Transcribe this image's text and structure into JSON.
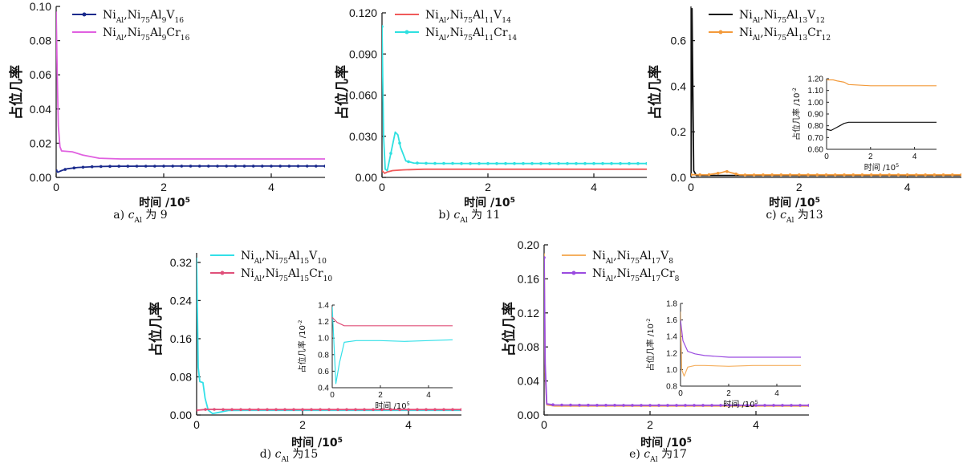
{
  "chart_data": [
    {
      "type": "line",
      "caption": "a) c_Al 为 9",
      "ylabel": "占位几率",
      "xlabel": "时间 /10^5",
      "xlim": [
        0,
        5
      ],
      "ylim": [
        0,
        0.1
      ],
      "xticks": [
        "0",
        "2",
        "4"
      ],
      "yticks": [
        "0.00",
        "0.02",
        "0.04",
        "0.06",
        "0.08",
        "0.10"
      ],
      "series": [
        {
          "name": "Ni_Al,Ni75Al9V16",
          "color": "#1a2a8c",
          "marker": true,
          "points": [
            [
              0,
              0.004
            ],
            [
              0.03,
              0.003
            ],
            [
              0.1,
              0.004
            ],
            [
              0.2,
              0.005
            ],
            [
              0.4,
              0.0058
            ],
            [
              0.7,
              0.0063
            ],
            [
              1,
              0.0065
            ],
            [
              2,
              0.0066
            ],
            [
              3,
              0.0066
            ],
            [
              4,
              0.0066
            ],
            [
              5,
              0.0066
            ]
          ]
        },
        {
          "name": "Ni_Al,Ni75Al9Cr16",
          "color": "#e060e0",
          "marker": false,
          "points": [
            [
              0,
              0.097
            ],
            [
              0.02,
              0.06
            ],
            [
              0.04,
              0.03
            ],
            [
              0.07,
              0.018
            ],
            [
              0.1,
              0.0155
            ],
            [
              0.3,
              0.015
            ],
            [
              0.5,
              0.013
            ],
            [
              0.8,
              0.0112
            ],
            [
              1.2,
              0.0108
            ],
            [
              2,
              0.0108
            ],
            [
              3,
              0.0108
            ],
            [
              4,
              0.0108
            ],
            [
              5,
              0.0108
            ]
          ]
        }
      ]
    },
    {
      "type": "line",
      "caption": "b) c_Al 为 11",
      "ylabel": "占位几率",
      "xlabel": "时间 /10^5",
      "xlim": [
        0,
        5
      ],
      "ylim": [
        0,
        0.12
      ],
      "xticks": [
        "0",
        "2",
        "4"
      ],
      "yticks": [
        "0.00",
        "0.030",
        "0.060",
        "0.090",
        "0.120"
      ],
      "series": [
        {
          "name": "Ni_Al,Ni75Al11V14",
          "color": "#f05a5a",
          "marker": false,
          "points": [
            [
              0,
              0.005
            ],
            [
              0.05,
              0.003
            ],
            [
              0.1,
              0.004
            ],
            [
              0.2,
              0.005
            ],
            [
              0.4,
              0.0055
            ],
            [
              0.8,
              0.006
            ],
            [
              1.5,
              0.006
            ],
            [
              3,
              0.006
            ],
            [
              5,
              0.006
            ]
          ]
        },
        {
          "name": "Ni_Al,Ni75Al11Cr14",
          "color": "#2ee0e0",
          "marker": true,
          "points": [
            [
              0,
              0.11
            ],
            [
              0.03,
              0.03
            ],
            [
              0.06,
              0.006
            ],
            [
              0.1,
              0.005
            ],
            [
              0.18,
              0.02
            ],
            [
              0.25,
              0.033
            ],
            [
              0.3,
              0.031
            ],
            [
              0.35,
              0.022
            ],
            [
              0.45,
              0.012
            ],
            [
              0.6,
              0.0105
            ],
            [
              1,
              0.0102
            ],
            [
              2,
              0.0101
            ],
            [
              3,
              0.0101
            ],
            [
              4,
              0.0101
            ],
            [
              5,
              0.0101
            ]
          ]
        }
      ]
    },
    {
      "type": "line",
      "caption": "c) c_Al 为13",
      "ylabel": "占位几率",
      "xlabel": "时间 /10^5",
      "xlim": [
        0,
        5
      ],
      "ylim": [
        0,
        0.75
      ],
      "xticks": [
        "0",
        "2",
        "4"
      ],
      "yticks": [
        "0.0",
        "0.2",
        "0.4",
        "0.6"
      ],
      "series": [
        {
          "name": "Ni_Al,Ni75Al13V12",
          "color": "#111111",
          "marker": false,
          "points": [
            [
              0,
              0.01
            ],
            [
              0.02,
              0.74
            ],
            [
              0.05,
              0.03
            ],
            [
              0.1,
              0.008
            ],
            [
              0.5,
              0.008
            ],
            [
              1,
              0.008
            ],
            [
              3,
              0.008
            ],
            [
              5,
              0.008
            ]
          ]
        },
        {
          "name": "Ni_Al,Ni75Al13Cr12",
          "color": "#f39a3a",
          "marker": true,
          "points": [
            [
              0,
              0.012
            ],
            [
              0.05,
              0.012
            ],
            [
              0.3,
              0.011
            ],
            [
              0.55,
              0.02
            ],
            [
              0.65,
              0.027
            ],
            [
              0.75,
              0.02
            ],
            [
              0.9,
              0.011
            ],
            [
              2,
              0.0113
            ],
            [
              3,
              0.0113
            ],
            [
              4,
              0.0113
            ],
            [
              5,
              0.0113
            ]
          ]
        }
      ],
      "inset": {
        "ylabel": "占位几率 /10^-2",
        "xlabel": "时间 /10^5",
        "xlim": [
          0,
          5
        ],
        "ylim": [
          0.6,
          1.2
        ],
        "xticks": [
          "0",
          "2",
          "4"
        ],
        "yticks": [
          "0.60",
          "0.70",
          "0.80",
          "0.90",
          "1.00",
          "1.10",
          "1.20"
        ],
        "series": [
          {
            "color": "#111111",
            "points": [
              [
                0,
                0.77
              ],
              [
                0.2,
                0.76
              ],
              [
                0.4,
                0.78
              ],
              [
                0.6,
                0.8
              ],
              [
                0.8,
                0.82
              ],
              [
                1,
                0.83
              ],
              [
                2,
                0.83
              ],
              [
                3,
                0.83
              ],
              [
                4,
                0.83
              ],
              [
                5,
                0.83
              ]
            ]
          },
          {
            "color": "#f39a3a",
            "points": [
              [
                0,
                1.19
              ],
              [
                0.3,
                1.19
              ],
              [
                0.5,
                1.18
              ],
              [
                0.8,
                1.17
              ],
              [
                1,
                1.15
              ],
              [
                2,
                1.14
              ],
              [
                3,
                1.14
              ],
              [
                4,
                1.14
              ],
              [
                5,
                1.14
              ]
            ]
          }
        ]
      }
    },
    {
      "type": "line",
      "caption": "d) c_Al 为15",
      "ylabel": "占位几率",
      "xlabel": "时间 /10^5",
      "xlim": [
        0,
        5
      ],
      "ylim": [
        0,
        0.34
      ],
      "xticks": [
        "0",
        "2",
        "4"
      ],
      "yticks": [
        "0.00",
        "0.08",
        "0.16",
        "0.24",
        "0.32"
      ],
      "series": [
        {
          "name": "Ni_Al,Ni75Al15V10",
          "color": "#33e0e8",
          "marker": false,
          "points": [
            [
              0,
              0.33
            ],
            [
              0.03,
              0.1
            ],
            [
              0.06,
              0.07
            ],
            [
              0.12,
              0.068
            ],
            [
              0.16,
              0.035
            ],
            [
              0.22,
              0.01
            ],
            [
              0.3,
              0.003
            ],
            [
              0.4,
              0.005
            ],
            [
              0.6,
              0.0095
            ],
            [
              1,
              0.0097
            ],
            [
              2,
              0.0097
            ],
            [
              3,
              0.0097
            ],
            [
              4,
              0.0097
            ],
            [
              5,
              0.0097
            ]
          ]
        },
        {
          "name": "Ni_Al,Ni75Al15Cr10",
          "color": "#e0507a",
          "marker": true,
          "points": [
            [
              0,
              0.01
            ],
            [
              0.2,
              0.012
            ],
            [
              0.5,
              0.0115
            ],
            [
              1,
              0.0115
            ],
            [
              2,
              0.0115
            ],
            [
              3,
              0.0115
            ],
            [
              4,
              0.0115
            ],
            [
              5,
              0.0115
            ]
          ]
        }
      ],
      "inset": {
        "ylabel": "占位几率 /10^-2",
        "xlabel": "时间 /10^5",
        "xlim": [
          0,
          5
        ],
        "ylim": [
          0.4,
          1.4
        ],
        "xticks": [
          "0",
          "2",
          "4"
        ],
        "yticks": [
          "0.4",
          "0.6",
          "0.8",
          "1.0",
          "1.2",
          "1.4"
        ],
        "series": [
          {
            "color": "#33e0e8",
            "points": [
              [
                0,
                1.38
              ],
              [
                0.15,
                0.45
              ],
              [
                0.3,
                0.7
              ],
              [
                0.5,
                0.95
              ],
              [
                1,
                0.97
              ],
              [
                2,
                0.97
              ],
              [
                3,
                0.96
              ],
              [
                4,
                0.97
              ],
              [
                5,
                0.98
              ]
            ]
          },
          {
            "color": "#e0507a",
            "points": [
              [
                0,
                1.25
              ],
              [
                0.2,
                1.19
              ],
              [
                0.5,
                1.15
              ],
              [
                1,
                1.15
              ],
              [
                2,
                1.15
              ],
              [
                3,
                1.15
              ],
              [
                4,
                1.15
              ],
              [
                5,
                1.15
              ]
            ]
          }
        ]
      }
    },
    {
      "type": "line",
      "caption": "e) c_Al 为17",
      "ylabel": "占位几率",
      "xlabel": "时间 /10^5",
      "xlim": [
        0,
        5
      ],
      "ylim": [
        0,
        0.2
      ],
      "xticks": [
        "0",
        "2",
        "4"
      ],
      "yticks": [
        "0.00",
        "0.04",
        "0.08",
        "0.12",
        "0.16",
        "0.20"
      ],
      "series": [
        {
          "name": "Ni_Al,Ni75Al17V8",
          "color": "#f5b060",
          "marker": false,
          "points": [
            [
              0,
              0.19
            ],
            [
              0.02,
              0.05
            ],
            [
              0.05,
              0.012
            ],
            [
              0.2,
              0.0105
            ],
            [
              1,
              0.0105
            ],
            [
              5,
              0.0105
            ]
          ]
        },
        {
          "name": "Ni_Al,Ni75Al17Cr8",
          "color": "#9a4be0",
          "marker": true,
          "points": [
            [
              0,
              0.185
            ],
            [
              0.02,
              0.06
            ],
            [
              0.05,
              0.013
            ],
            [
              0.2,
              0.0118
            ],
            [
              1,
              0.0115
            ],
            [
              2,
              0.0114
            ],
            [
              3,
              0.0114
            ],
            [
              4,
              0.0114
            ],
            [
              5,
              0.0114
            ]
          ]
        }
      ],
      "inset": {
        "ylabel": "占位几率 /10^-2",
        "xlabel": "时间 /10^5",
        "xlim": [
          0,
          5
        ],
        "ylim": [
          0.8,
          1.8
        ],
        "xticks": [
          "0",
          "2",
          "4"
        ],
        "yticks": [
          "0.8",
          "1.0",
          "1.2",
          "1.4",
          "1.6",
          "1.8"
        ],
        "series": [
          {
            "color": "#f5b060",
            "points": [
              [
                0,
                1.7
              ],
              [
                0.05,
                1.0
              ],
              [
                0.15,
                0.92
              ],
              [
                0.3,
                1.03
              ],
              [
                0.6,
                1.05
              ],
              [
                1,
                1.05
              ],
              [
                2,
                1.04
              ],
              [
                3,
                1.05
              ],
              [
                4,
                1.05
              ],
              [
                5,
                1.05
              ]
            ]
          },
          {
            "color": "#9a4be0",
            "points": [
              [
                0,
                1.6
              ],
              [
                0.1,
                1.35
              ],
              [
                0.3,
                1.22
              ],
              [
                0.6,
                1.19
              ],
              [
                1,
                1.17
              ],
              [
                2,
                1.15
              ],
              [
                3,
                1.15
              ],
              [
                4,
                1.15
              ],
              [
                5,
                1.15
              ]
            ]
          }
        ]
      }
    }
  ]
}
